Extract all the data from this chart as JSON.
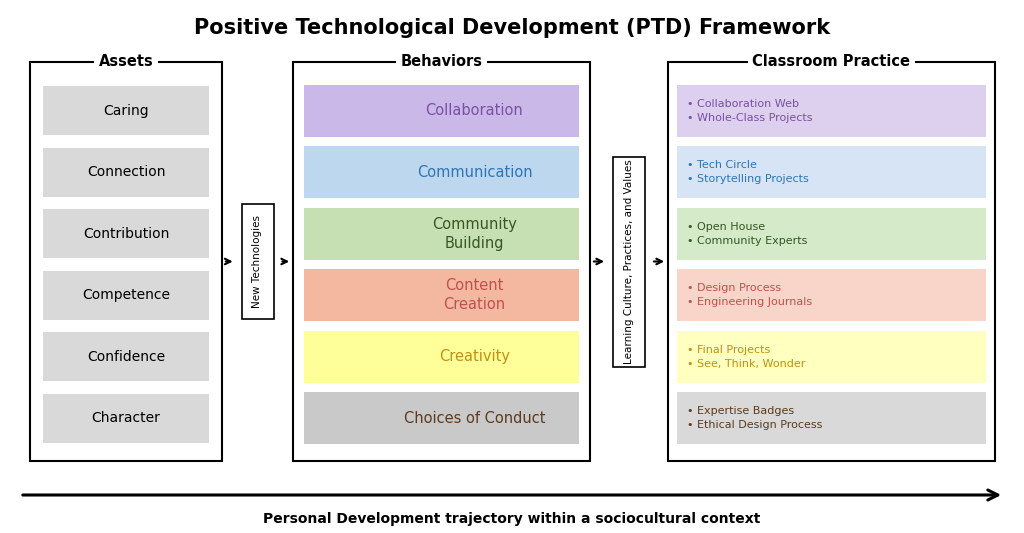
{
  "title": "Positive Technological Development (PTD) Framework",
  "bottom_label": "Personal Development trajectory within a sociocultural context",
  "assets_header": "Assets",
  "behaviors_header": "Behaviors",
  "classroom_header": "Classroom Practice",
  "new_tech_label": "New Technologies",
  "learning_culture_label": "Learning Culture, Practices, and Values",
  "assets": [
    "Caring",
    "Connection",
    "Contribution",
    "Competence",
    "Confidence",
    "Character"
  ],
  "assets_bg": "#d9d9d9",
  "behaviors": [
    {
      "name": "Collaboration",
      "bg": "#c9b8e8",
      "text_color": "#7b4fa6"
    },
    {
      "name": "Communication",
      "bg": "#bdd7ee",
      "text_color": "#2e75b6"
    },
    {
      "name": "Community\nBuilding",
      "bg": "#c6e0b4",
      "text_color": "#375623"
    },
    {
      "name": "Content\nCreation",
      "bg": "#f4b8a0",
      "text_color": "#c0504d"
    },
    {
      "name": "Creativity",
      "bg": "#ffff99",
      "text_color": "#c09010"
    },
    {
      "name": "Choices of Conduct",
      "bg": "#c9c9c9",
      "text_color": "#5c3a1e"
    }
  ],
  "classroom": [
    {
      "lines": [
        "Collaboration Web",
        "Whole-Class Projects"
      ],
      "bg": "#ddd0ee",
      "text_color": "#7b4fa6"
    },
    {
      "lines": [
        "Tech Circle",
        "Storytelling Projects"
      ],
      "bg": "#d6e4f5",
      "text_color": "#2e75b6"
    },
    {
      "lines": [
        "Open House",
        "Community Experts"
      ],
      "bg": "#d5eac8",
      "text_color": "#375623"
    },
    {
      "lines": [
        "Design Process",
        "Engineering Journals"
      ],
      "bg": "#f8d5c8",
      "text_color": "#c0504d"
    },
    {
      "lines": [
        "Final Projects",
        "See, Think, Wonder"
      ],
      "bg": "#ffffc0",
      "text_color": "#c09010"
    },
    {
      "lines": [
        "Expertise Badges",
        "Ethical Design Process"
      ],
      "bg": "#d9d9d9",
      "text_color": "#5c3a1e"
    }
  ],
  "bg_color": "#ffffff",
  "fig_w": 10.24,
  "fig_h": 5.33,
  "dpi": 100
}
